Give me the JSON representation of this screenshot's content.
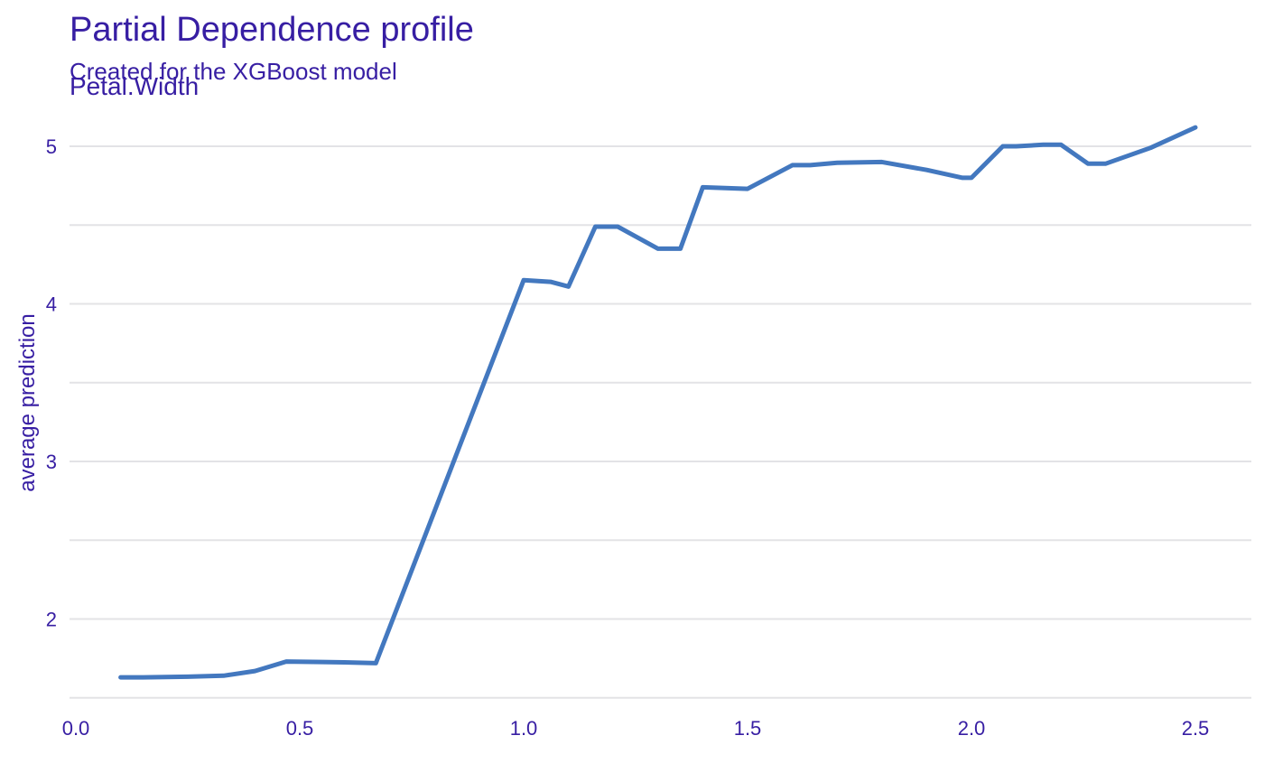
{
  "chart_data": {
    "type": "line",
    "title": "Partial Dependence profile",
    "subtitle": "Created for the XGBoost model",
    "panel_label": "Petal.Width",
    "xlabel": "",
    "ylabel": "average prediction",
    "xlim": [
      0.0,
      2.6
    ],
    "ylim": [
      1.5,
      5.25
    ],
    "x_ticks": [
      0.0,
      0.5,
      1.0,
      1.5,
      2.0,
      2.5
    ],
    "x_tick_labels": [
      "0.0",
      "0.5",
      "1.0",
      "1.5",
      "2.0",
      "2.5"
    ],
    "y_ticks": [
      2,
      3,
      4,
      5
    ],
    "y_tick_labels": [
      "2",
      "3",
      "4",
      "5"
    ],
    "y_gridlines": [
      1.5,
      2,
      2.5,
      3,
      3.5,
      4,
      4.5,
      5
    ],
    "grid": true,
    "legend": "none",
    "series": [
      {
        "color": "#4378bf",
        "x": [
          0.1,
          0.15,
          0.2,
          0.25,
          0.33,
          0.4,
          0.47,
          0.55,
          0.6,
          0.67,
          1.0,
          1.06,
          1.1,
          1.16,
          1.21,
          1.3,
          1.35,
          1.4,
          1.5,
          1.6,
          1.64,
          1.7,
          1.8,
          1.9,
          1.98,
          2.0,
          2.07,
          2.1,
          2.16,
          2.2,
          2.26,
          2.3,
          2.4,
          2.5
        ],
        "values": [
          1.63,
          1.63,
          1.632,
          1.634,
          1.64,
          1.67,
          1.73,
          1.727,
          1.725,
          1.72,
          4.15,
          4.14,
          4.11,
          4.49,
          4.49,
          4.35,
          4.35,
          4.74,
          4.73,
          4.88,
          4.88,
          4.895,
          4.9,
          4.85,
          4.8,
          4.8,
          5.0,
          5.0,
          5.01,
          5.01,
          4.89,
          4.89,
          4.99,
          5.12
        ]
      }
    ]
  }
}
